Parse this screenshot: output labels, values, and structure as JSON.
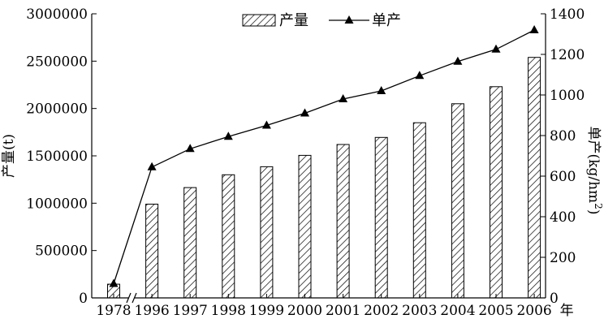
{
  "chart_data": {
    "type": "bar",
    "categories": [
      "1978",
      "1996",
      "1997",
      "1998",
      "1999",
      "2000",
      "2001",
      "2002",
      "2003",
      "2004",
      "2005",
      "2006"
    ],
    "x_unit_suffix": "年",
    "series": [
      {
        "name": "产量",
        "kind": "bar",
        "axis": "left",
        "values": [
          145000,
          990000,
          1165000,
          1300000,
          1385000,
          1505000,
          1620000,
          1695000,
          1850000,
          2050000,
          2230000,
          2540000
        ]
      },
      {
        "name": "单产",
        "kind": "line",
        "axis": "right",
        "marker": "triangle",
        "values": [
          70,
          645,
          735,
          795,
          850,
          910,
          980,
          1020,
          1095,
          1165,
          1225,
          1320
        ]
      }
    ],
    "left_axis": {
      "label": "产量(t)",
      "ylim": [
        0,
        3000000
      ],
      "ticks": [
        "0",
        "500000",
        "1000000",
        "1500000",
        "2000000",
        "2500000",
        "3000000"
      ]
    },
    "right_axis": {
      "label_main": "单产(kg/hm",
      "label_sup": "2",
      "label_close": ")",
      "ylim": [
        0,
        1400
      ],
      "ticks": [
        "0",
        "200",
        "400",
        "600",
        "800",
        "1000",
        "1200",
        "1400"
      ]
    },
    "axis_break": true,
    "grid": false,
    "legend_position": "top-center"
  }
}
